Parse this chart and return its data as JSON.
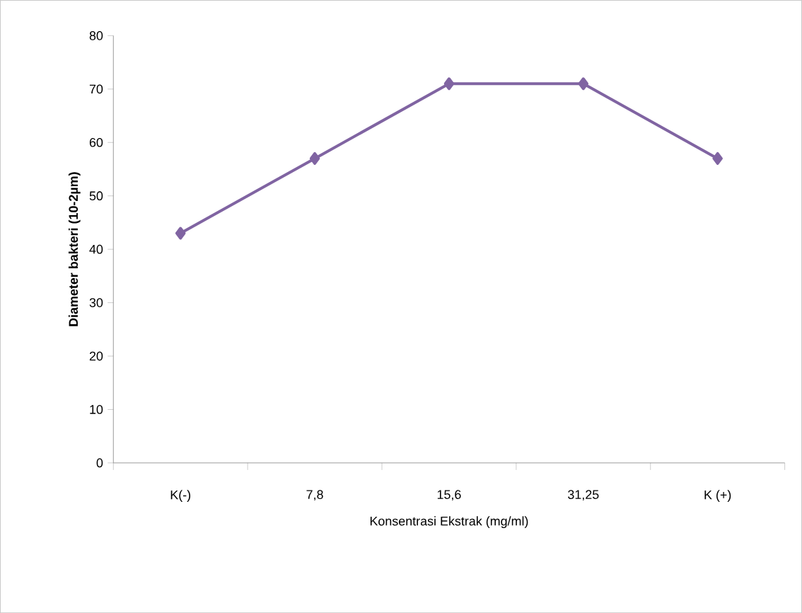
{
  "chart_data": {
    "type": "line",
    "xlabel": "Konsentrasi Ekstrak (mg/ml)",
    "ylabel": "Diameter bakteri (10-2µm)",
    "categories": [
      "K(-)",
      "7,8",
      "15,6",
      "31,25",
      "K (+)"
    ],
    "series": [
      {
        "color": "#8064a2",
        "values": [
          43,
          57,
          71,
          71,
          57
        ]
      }
    ],
    "ylim": [
      0,
      80
    ],
    "yticks": [
      0,
      10,
      20,
      30,
      40,
      50,
      60,
      70,
      80
    ],
    "marker": "diamond",
    "line_style": "solid"
  }
}
